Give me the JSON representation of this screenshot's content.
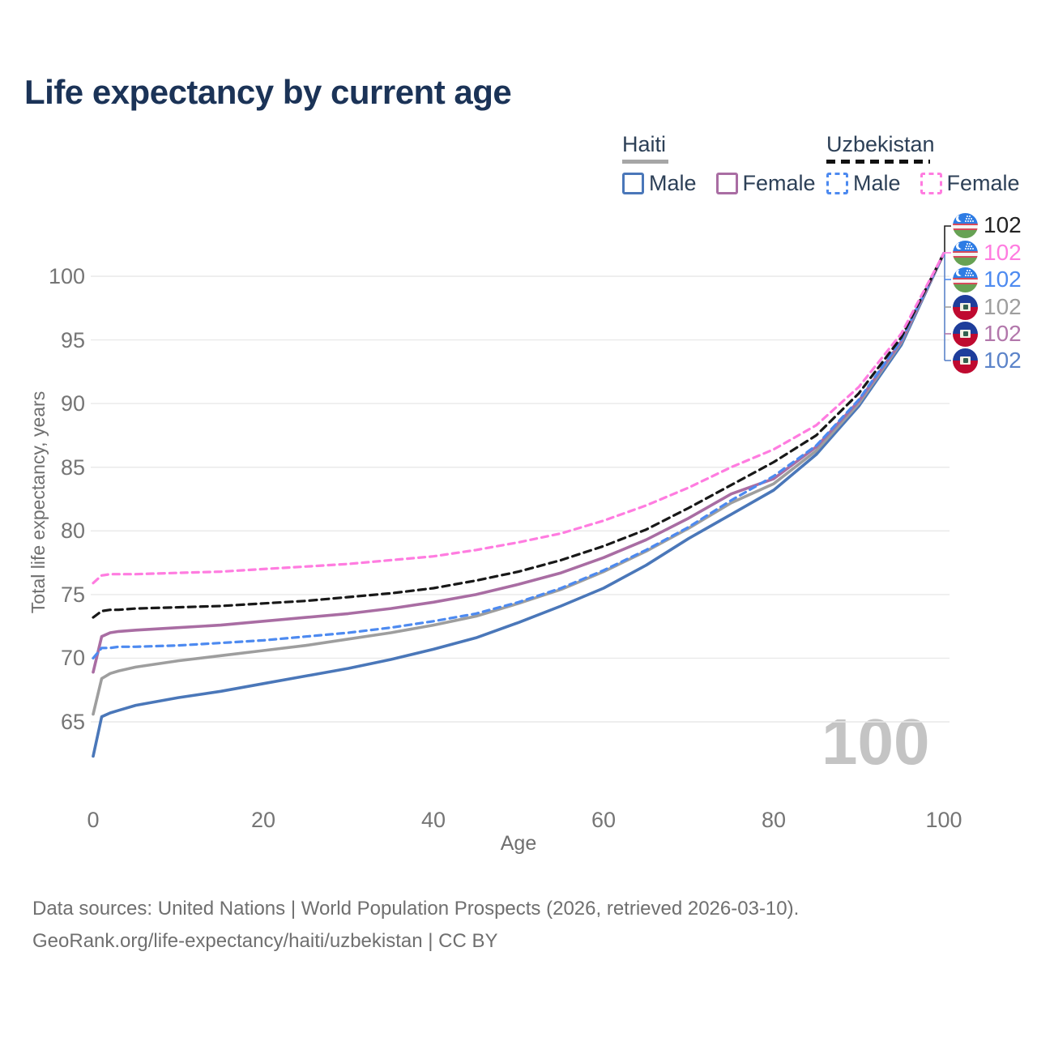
{
  "title": "Life expectancy by current age",
  "legend": {
    "groups": [
      {
        "name": "Haiti",
        "line_style": "solid",
        "underline_color": "#a6a6a6",
        "items": [
          {
            "label": "Male",
            "color": "#4a77b9",
            "dashed": false
          },
          {
            "label": "Female",
            "color": "#a96da3",
            "dashed": false
          }
        ]
      },
      {
        "name": "Uzbekistan",
        "line_style": "dashed",
        "underline_color": "#111111",
        "items": [
          {
            "label": "Male",
            "color": "#4d8af0",
            "dashed": true
          },
          {
            "label": "Female",
            "color": "#ff7ce0",
            "dashed": true
          }
        ]
      }
    ]
  },
  "chart_data": {
    "type": "line",
    "title": "Life expectancy by current age",
    "xlabel": "Age",
    "ylabel": "Total life expectancy, years",
    "xlim": [
      0,
      100
    ],
    "ylim": [
      62,
      103
    ],
    "xticks": [
      0,
      20,
      40,
      60,
      80,
      100
    ],
    "yticks": [
      65,
      70,
      75,
      80,
      85,
      90,
      95,
      100
    ],
    "grid": "horizontal-only",
    "legend_position": "top-right",
    "x": [
      0,
      1,
      2,
      3,
      5,
      10,
      15,
      20,
      25,
      30,
      35,
      40,
      45,
      50,
      55,
      60,
      65,
      70,
      75,
      80,
      85,
      90,
      95,
      100
    ],
    "series": [
      {
        "id": "haiti-male",
        "name": "Haiti Male",
        "color": "#4a77b9",
        "dash": null,
        "values": [
          62.3,
          65.4,
          65.7,
          65.9,
          66.3,
          66.9,
          67.4,
          68.0,
          68.6,
          69.2,
          69.9,
          70.7,
          71.6,
          72.8,
          74.1,
          75.5,
          77.3,
          79.4,
          81.3,
          83.2,
          86.0,
          89.8,
          94.6,
          101.8
        ]
      },
      {
        "id": "haiti-total",
        "name": "Haiti Total",
        "color": "#9e9e9e",
        "dash": null,
        "values": [
          65.6,
          68.4,
          68.8,
          69.0,
          69.3,
          69.8,
          70.2,
          70.6,
          71.0,
          71.5,
          72.0,
          72.6,
          73.3,
          74.3,
          75.4,
          76.8,
          78.4,
          80.2,
          82.2,
          83.7,
          86.3,
          90.0,
          94.8,
          101.8
        ]
      },
      {
        "id": "haiti-female",
        "name": "Haiti Female",
        "color": "#a96da3",
        "dash": null,
        "values": [
          68.9,
          71.7,
          72.0,
          72.1,
          72.2,
          72.4,
          72.6,
          72.9,
          73.2,
          73.5,
          73.9,
          74.4,
          75.0,
          75.8,
          76.7,
          77.9,
          79.3,
          81.0,
          82.9,
          84.1,
          86.6,
          90.2,
          94.9,
          101.8
        ]
      },
      {
        "id": "uzbekistan-male",
        "name": "Uzbekistan Male",
        "color": "#4d8af0",
        "dash": "8 6",
        "values": [
          70.0,
          70.8,
          70.8,
          70.9,
          70.9,
          71.0,
          71.2,
          71.4,
          71.7,
          72.0,
          72.4,
          72.9,
          73.5,
          74.4,
          75.5,
          76.9,
          78.5,
          80.3,
          82.4,
          84.3,
          86.7,
          90.3,
          95.0,
          101.8
        ]
      },
      {
        "id": "uzbekistan-total",
        "name": "Uzbekistan Total",
        "color": "#181818",
        "dash": "9 6",
        "values": [
          73.2,
          73.7,
          73.8,
          73.8,
          73.9,
          74.0,
          74.1,
          74.3,
          74.5,
          74.8,
          75.1,
          75.5,
          76.1,
          76.8,
          77.7,
          78.8,
          80.1,
          81.8,
          83.6,
          85.4,
          87.5,
          90.8,
          95.2,
          101.8
        ]
      },
      {
        "id": "uzbekistan-female",
        "name": "Uzbekistan Female",
        "color": "#ff7ce0",
        "dash": "8 6",
        "values": [
          75.9,
          76.5,
          76.6,
          76.6,
          76.6,
          76.7,
          76.8,
          77.0,
          77.2,
          77.4,
          77.7,
          78.0,
          78.5,
          79.1,
          79.8,
          80.8,
          82.0,
          83.4,
          85.0,
          86.4,
          88.3,
          91.3,
          95.5,
          101.8
        ]
      }
    ],
    "end_labels": [
      {
        "flag": "uz",
        "country": "Uzbekistan",
        "series": "uzbekistan-total",
        "value": "102",
        "color": "#222222"
      },
      {
        "flag": "uz",
        "country": "Uzbekistan",
        "series": "uzbekistan-female",
        "value": "102",
        "color": "#ff7ce0"
      },
      {
        "flag": "uz",
        "country": "Uzbekistan",
        "series": "uzbekistan-male",
        "value": "102",
        "color": "#4d8af0"
      },
      {
        "flag": "ht",
        "country": "Haiti",
        "series": "haiti-total",
        "value": "102",
        "color": "#9e9e9e"
      },
      {
        "flag": "ht",
        "country": "Haiti",
        "series": "haiti-female",
        "value": "102",
        "color": "#b277ab"
      },
      {
        "flag": "ht",
        "country": "Haiti",
        "series": "haiti-male",
        "value": "102",
        "color": "#5b83c9"
      }
    ]
  },
  "watermark_age": "100",
  "footer": {
    "line1": "Data sources: United Nations | World Population Prospects (2026, retrieved 2026-03-10).",
    "line2": "GeoRank.org/life-expectancy/haiti/uzbekistan | CC BY"
  }
}
